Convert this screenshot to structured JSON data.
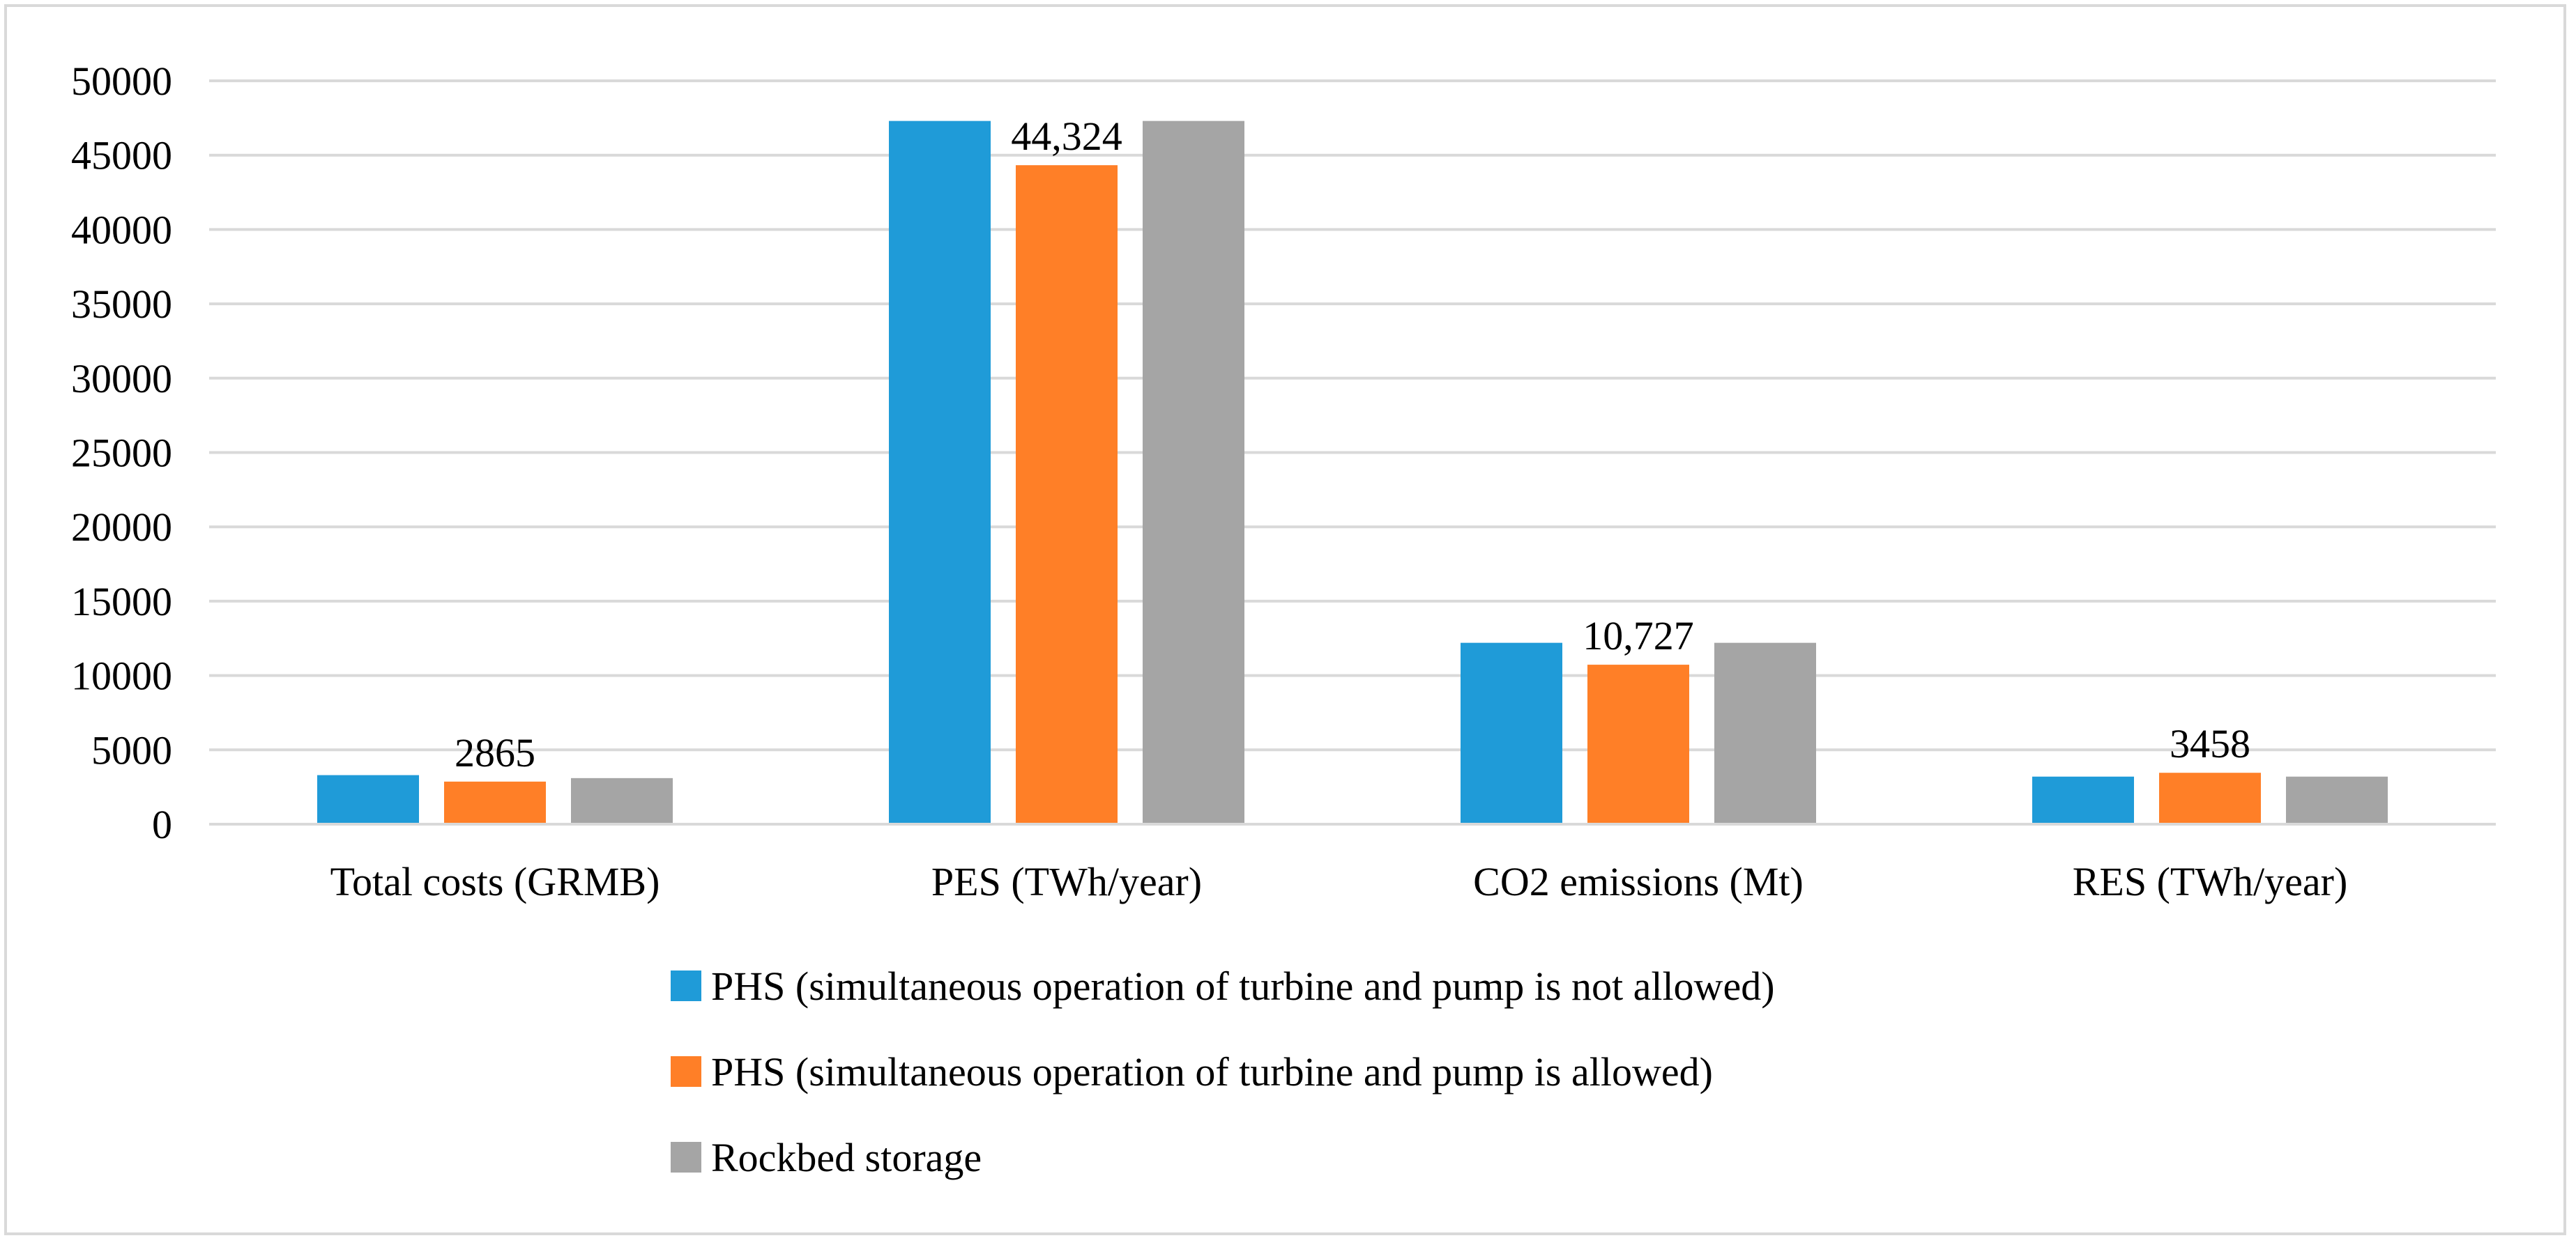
{
  "chart_data": {
    "type": "bar",
    "title": "",
    "xlabel": "",
    "ylabel": "",
    "ylim": [
      0,
      50000
    ],
    "yticks": [
      0,
      5000,
      10000,
      15000,
      20000,
      25000,
      30000,
      35000,
      40000,
      45000,
      50000
    ],
    "grid": true,
    "legend_position": "bottom",
    "categories": [
      "Total costs (GRMB)",
      "PES (TWh/year)",
      "CO2 emissions (Mt)",
      "RES (TWh/year)"
    ],
    "series": [
      {
        "name": "PHS (simultaneous operation of turbine and pump is not allowed)",
        "color": "#1f9bd8",
        "values": [
          3300,
          47300,
          12200,
          3200
        ],
        "data_labels": [
          "",
          "",
          "",
          ""
        ]
      },
      {
        "name": "PHS (simultaneous operation of turbine and pump is allowed)",
        "color": "#ff7f27",
        "values": [
          2865,
          44324,
          10727,
          3458
        ],
        "data_labels": [
          "2865",
          "44,324",
          "10,727",
          "3458"
        ]
      },
      {
        "name": "Rockbed storage",
        "color": "#a5a5a5",
        "values": [
          3100,
          47300,
          12200,
          3200
        ],
        "data_labels": [
          "",
          "",
          "",
          ""
        ]
      }
    ]
  }
}
